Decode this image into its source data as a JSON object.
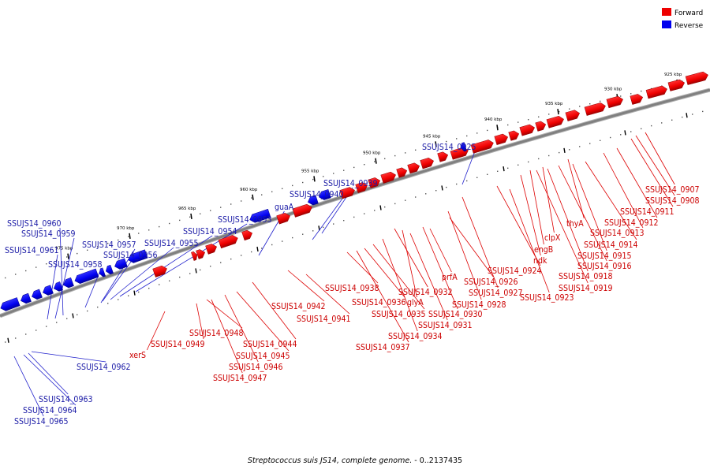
{
  "caption": {
    "organism": "Streptococcus suis JS14, complete genome.",
    "range": "- 0..2137435"
  },
  "legend": [
    {
      "label": "Forward",
      "color": "#ee0000"
    },
    {
      "label": "Reverse",
      "color": "#0000ee"
    }
  ],
  "colors": {
    "forward": "#ee0000",
    "reverse": "#0000ee",
    "backbone": "#808080",
    "forward_text": "#cc0000",
    "reverse_text": "#1a1aa6"
  },
  "ticks": [
    "925 kbp",
    "930 kbp",
    "935 kbp",
    "940 kbp",
    "945 kbp",
    "950 kbp",
    "955 kbp",
    "960 kbp",
    "965 kbp",
    "970 kbp",
    "975 kbp"
  ],
  "labels": [
    {
      "text": "SSUJS14_0907",
      "strand": "forward"
    },
    {
      "text": "SSUJS14_0908",
      "strand": "forward"
    },
    {
      "text": "SSUJS14_0911",
      "strand": "forward"
    },
    {
      "text": "SSUJS14_0912",
      "strand": "forward"
    },
    {
      "text": "SSUJS14_0913",
      "strand": "forward"
    },
    {
      "text": "thyA",
      "strand": "forward"
    },
    {
      "text": "SSUJS14_0914",
      "strand": "forward"
    },
    {
      "text": "clpX",
      "strand": "forward"
    },
    {
      "text": "engB",
      "strand": "forward"
    },
    {
      "text": "SSUJS14_0915",
      "strand": "forward"
    },
    {
      "text": "ndk",
      "strand": "forward"
    },
    {
      "text": "SSUJS14_0916",
      "strand": "forward"
    },
    {
      "text": "SSUJS14_0924",
      "strand": "forward"
    },
    {
      "text": "SSUJS14_0918",
      "strand": "forward"
    },
    {
      "text": "prfA",
      "strand": "forward"
    },
    {
      "text": "SSUJS14_0926",
      "strand": "forward"
    },
    {
      "text": "SSUJS14_0919",
      "strand": "forward"
    },
    {
      "text": "SSUJS14_0938",
      "strand": "forward"
    },
    {
      "text": "SSUJS14_0932",
      "strand": "forward"
    },
    {
      "text": "SSUJS14_0927",
      "strand": "forward"
    },
    {
      "text": "SSUJS14_0923",
      "strand": "forward"
    },
    {
      "text": "SSUJS14_0942",
      "strand": "forward"
    },
    {
      "text": "SSUJS14_0936",
      "strand": "forward"
    },
    {
      "text": "glyA",
      "strand": "forward"
    },
    {
      "text": "SSUJS14_0928",
      "strand": "forward"
    },
    {
      "text": "SSUJS14_0935",
      "strand": "forward"
    },
    {
      "text": "SSUJS14_0930",
      "strand": "forward"
    },
    {
      "text": "SSUJS14_0941",
      "strand": "forward"
    },
    {
      "text": "SSUJS14_0931",
      "strand": "forward"
    },
    {
      "text": "SSUJS14_0934",
      "strand": "forward"
    },
    {
      "text": "SSUJS14_0948",
      "strand": "forward"
    },
    {
      "text": "SSUJS14_0949",
      "strand": "forward"
    },
    {
      "text": "SSUJS14_0944",
      "strand": "forward"
    },
    {
      "text": "SSUJS14_0937",
      "strand": "forward"
    },
    {
      "text": "xerS",
      "strand": "forward"
    },
    {
      "text": "SSUJS14_0945",
      "strand": "forward"
    },
    {
      "text": "SSUJS14_0946",
      "strand": "forward"
    },
    {
      "text": "SSUJS14_0947",
      "strand": "forward"
    },
    {
      "text": "SSUJS14_0925",
      "strand": "reverse"
    },
    {
      "text": "SSUJS14_0939",
      "strand": "reverse"
    },
    {
      "text": "SSUJS14_0940",
      "strand": "reverse"
    },
    {
      "text": "guaA",
      "strand": "reverse"
    },
    {
      "text": "SSUJS14_0953",
      "strand": "reverse"
    },
    {
      "text": "SSUJS14_0954",
      "strand": "reverse"
    },
    {
      "text": "SSUJS14_0955",
      "strand": "reverse"
    },
    {
      "text": "SSUJS14_0956",
      "strand": "reverse"
    },
    {
      "text": "SSUJS14_0957",
      "strand": "reverse"
    },
    {
      "text": "SSUJS14_0958",
      "strand": "reverse"
    },
    {
      "text": "SSUJS14_0960",
      "strand": "reverse"
    },
    {
      "text": "SSUJS14_0959",
      "strand": "reverse"
    },
    {
      "text": "SSUJS14_0961",
      "strand": "reverse"
    },
    {
      "text": "SSUJS14_0962",
      "strand": "reverse"
    },
    {
      "text": "SSUJS14_0963",
      "strand": "reverse"
    },
    {
      "text": "SSUJS14_0964",
      "strand": "reverse"
    },
    {
      "text": "SSUJS14_0965",
      "strand": "reverse"
    }
  ]
}
